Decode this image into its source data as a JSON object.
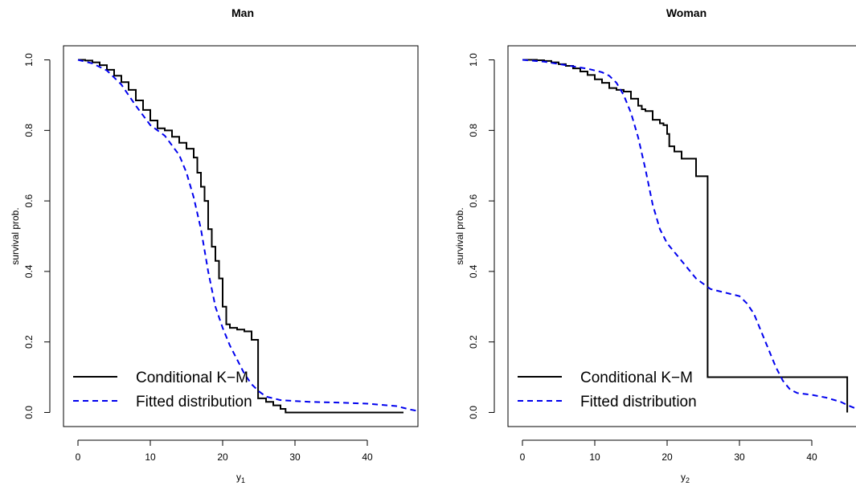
{
  "chart_data": [
    {
      "type": "line",
      "title": "Man",
      "xlabel": "y",
      "xlabel_subscript": "1",
      "ylabel": "survival prob.",
      "xlim": [
        -2,
        47
      ],
      "ylim": [
        -0.04,
        1.04
      ],
      "xticks": [
        0,
        10,
        20,
        30,
        40
      ],
      "xtick_labels": [
        "0",
        "10",
        "20",
        "30",
        "40"
      ],
      "yticks": [
        0,
        0.2,
        0.4,
        0.6,
        0.8,
        1
      ],
      "ytick_labels": [
        "0.0",
        "0.2",
        "0.4",
        "0.6",
        "0.8",
        "1.0"
      ],
      "legend": "bottom-left",
      "grid": false,
      "series": [
        {
          "name": "Conditional K−M",
          "style": "step",
          "color": "#000000",
          "dash": "solid",
          "points": [
            [
              0,
              1.0
            ],
            [
              1,
              0.998
            ],
            [
              2,
              0.993
            ],
            [
              3,
              0.985
            ],
            [
              4,
              0.972
            ],
            [
              5,
              0.955
            ],
            [
              6,
              0.937
            ],
            [
              7,
              0.915
            ],
            [
              8,
              0.885
            ],
            [
              9,
              0.858
            ],
            [
              10,
              0.828
            ],
            [
              11,
              0.806
            ],
            [
              12,
              0.8
            ],
            [
              13,
              0.782
            ],
            [
              14,
              0.765
            ],
            [
              15,
              0.748
            ],
            [
              16,
              0.723
            ],
            [
              16.5,
              0.68
            ],
            [
              17,
              0.64
            ],
            [
              17.5,
              0.6
            ],
            [
              18,
              0.52
            ],
            [
              18.5,
              0.47
            ],
            [
              19,
              0.43
            ],
            [
              19.5,
              0.38
            ],
            [
              20,
              0.3
            ],
            [
              20.5,
              0.25
            ],
            [
              21,
              0.24
            ],
            [
              22,
              0.235
            ],
            [
              23,
              0.23
            ],
            [
              24,
              0.206
            ],
            [
              24.8,
              0.206
            ],
            [
              24.9,
              0.04
            ],
            [
              26,
              0.03
            ],
            [
              27,
              0.02
            ],
            [
              28,
              0.01
            ],
            [
              28.7,
              0.0
            ],
            [
              45,
              0.0
            ]
          ]
        },
        {
          "name": "Fitted distribution",
          "style": "line",
          "color": "#0000ee",
          "dash": "dashed",
          "points": [
            [
              0,
              1.0
            ],
            [
              2,
              0.99
            ],
            [
              4,
              0.97
            ],
            [
              6,
              0.93
            ],
            [
              8,
              0.87
            ],
            [
              10,
              0.815
            ],
            [
              12,
              0.785
            ],
            [
              14,
              0.73
            ],
            [
              15,
              0.68
            ],
            [
              16,
              0.61
            ],
            [
              17,
              0.52
            ],
            [
              18,
              0.4
            ],
            [
              19,
              0.3
            ],
            [
              20,
              0.24
            ],
            [
              21,
              0.19
            ],
            [
              22,
              0.15
            ],
            [
              23,
              0.11
            ],
            [
              24,
              0.08
            ],
            [
              25,
              0.06
            ],
            [
              26,
              0.045
            ],
            [
              28,
              0.035
            ],
            [
              32,
              0.03
            ],
            [
              36,
              0.028
            ],
            [
              40,
              0.025
            ],
            [
              44,
              0.018
            ],
            [
              46,
              0.008
            ],
            [
              47,
              0.004
            ]
          ]
        }
      ]
    },
    {
      "type": "line",
      "title": "Woman",
      "xlabel": "y",
      "xlabel_subscript": "2",
      "ylabel": "survival prob.",
      "xlim": [
        -2,
        47
      ],
      "ylim": [
        -0.04,
        1.04
      ],
      "xticks": [
        0,
        10,
        20,
        30,
        40
      ],
      "xtick_labels": [
        "0",
        "10",
        "20",
        "30",
        "40"
      ],
      "yticks": [
        0,
        0.2,
        0.4,
        0.6,
        0.8,
        1
      ],
      "ytick_labels": [
        "0.0",
        "0.2",
        "0.4",
        "0.6",
        "0.8",
        "1.0"
      ],
      "legend": "bottom-left",
      "grid": false,
      "series": [
        {
          "name": "Conditional K−M",
          "style": "step",
          "color": "#000000",
          "dash": "solid",
          "points": [
            [
              0,
              1.0
            ],
            [
              2,
              0.999
            ],
            [
              3,
              0.997
            ],
            [
              4,
              0.993
            ],
            [
              5,
              0.988
            ],
            [
              6,
              0.983
            ],
            [
              7,
              0.976
            ],
            [
              8,
              0.967
            ],
            [
              9,
              0.957
            ],
            [
              10,
              0.945
            ],
            [
              11,
              0.935
            ],
            [
              12,
              0.92
            ],
            [
              13,
              0.915
            ],
            [
              14,
              0.91
            ],
            [
              15,
              0.89
            ],
            [
              16,
              0.87
            ],
            [
              16.5,
              0.86
            ],
            [
              17,
              0.855
            ],
            [
              18,
              0.83
            ],
            [
              19,
              0.82
            ],
            [
              19.5,
              0.815
            ],
            [
              20,
              0.79
            ],
            [
              20.3,
              0.755
            ],
            [
              21,
              0.74
            ],
            [
              22,
              0.72
            ],
            [
              24,
              0.67
            ],
            [
              25.5,
              0.67
            ],
            [
              25.6,
              0.1
            ],
            [
              44.8,
              0.1
            ],
            [
              44.9,
              0.0
            ]
          ]
        },
        {
          "name": "Fitted distribution",
          "style": "line",
          "color": "#0000ee",
          "dash": "dashed",
          "points": [
            [
              0,
              1.0
            ],
            [
              3,
              0.995
            ],
            [
              6,
              0.985
            ],
            [
              9,
              0.975
            ],
            [
              11,
              0.965
            ],
            [
              12,
              0.955
            ],
            [
              13,
              0.935
            ],
            [
              14,
              0.9
            ],
            [
              15,
              0.85
            ],
            [
              16,
              0.78
            ],
            [
              17,
              0.69
            ],
            [
              18,
              0.59
            ],
            [
              19,
              0.52
            ],
            [
              20,
              0.48
            ],
            [
              21,
              0.455
            ],
            [
              22,
              0.43
            ],
            [
              23,
              0.405
            ],
            [
              24,
              0.38
            ],
            [
              25,
              0.365
            ],
            [
              26,
              0.35
            ],
            [
              28,
              0.34
            ],
            [
              30,
              0.33
            ],
            [
              31,
              0.31
            ],
            [
              32,
              0.28
            ],
            [
              33,
              0.23
            ],
            [
              34,
              0.18
            ],
            [
              35,
              0.13
            ],
            [
              36,
              0.09
            ],
            [
              37,
              0.065
            ],
            [
              38,
              0.055
            ],
            [
              40,
              0.05
            ],
            [
              42,
              0.042
            ],
            [
              44,
              0.03
            ],
            [
              45,
              0.02
            ],
            [
              46,
              0.012
            ],
            [
              47,
              0.008
            ]
          ]
        }
      ]
    }
  ]
}
